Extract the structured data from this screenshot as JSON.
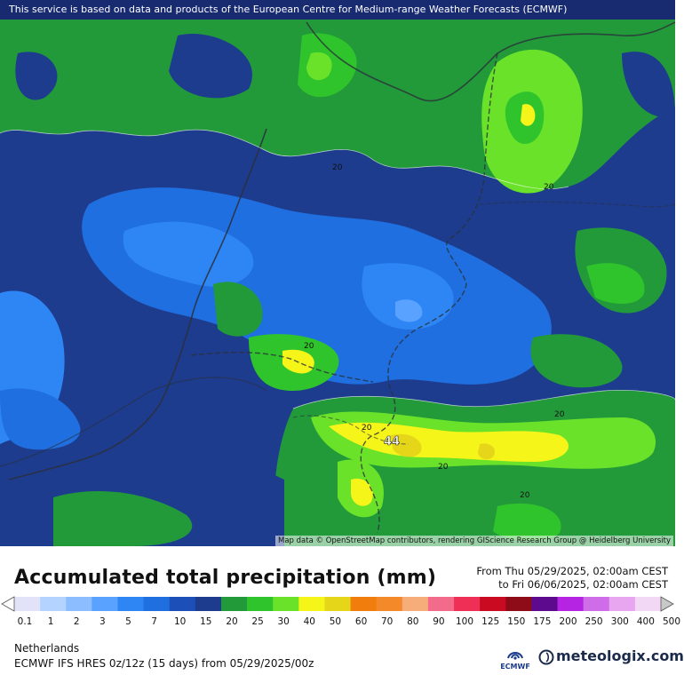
{
  "map": {
    "banner": "This service is based on data and products of the European Centre for Medium-range Weather Forecasts (ECMWF)",
    "attribution": "Map data © OpenStreetMap contributors, rendering GIScience Research Group @ Heidelberg University",
    "contour_labels": [
      "20",
      "20",
      "20",
      "20",
      "20",
      "20",
      "20"
    ],
    "max_value_label": "44"
  },
  "legend": {
    "title": "Accumulated total precipitation (mm)",
    "period_from": "From Thu 05/29/2025, 02:00am CEST",
    "period_to": "to Fri 06/06/2025, 02:00am CEST",
    "levels": [
      "0.1",
      "1",
      "2",
      "3",
      "5",
      "7",
      "10",
      "15",
      "20",
      "25",
      "30",
      "40",
      "50",
      "60",
      "70",
      "80",
      "90",
      "100",
      "125",
      "150",
      "175",
      "200",
      "250",
      "300",
      "400",
      "500"
    ],
    "colors": [
      "#e2e2f8",
      "#b4d4ff",
      "#8cbdff",
      "#5aa2ff",
      "#2e86f5",
      "#1f6fe0",
      "#1c4fb8",
      "#1e3c8e",
      "#229a3a",
      "#2fc42c",
      "#6ae22a",
      "#f5f51a",
      "#e6d61a",
      "#f07d0c",
      "#f4892a",
      "#f7ad7a",
      "#f36b8a",
      "#ef2f55",
      "#c90a20",
      "#8e0c18",
      "#5e0a8e",
      "#b524e3",
      "#cf6de9",
      "#e7a6ef",
      "#f3d8f6",
      "#c8c8c8"
    ],
    "region": "Netherlands",
    "model_info": "ECMWF IFS HRES 0z/12z (15 days) from  05/29/2025/00z"
  },
  "logos": {
    "ecmwf": "ECMWF",
    "meteologix": "meteologix.com"
  }
}
